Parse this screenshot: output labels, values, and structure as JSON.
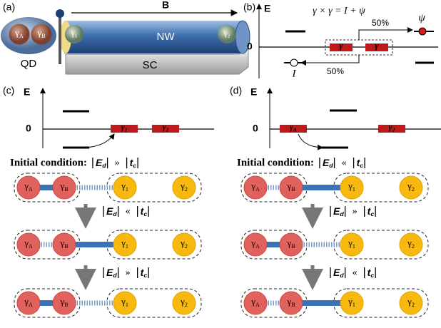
{
  "panel_a": {
    "label": "(a)",
    "qd": "QD",
    "nw": "NW",
    "sc": "SC",
    "field": "B",
    "qd_modes": [
      {
        "symbol": "γ",
        "sub": "A"
      },
      {
        "symbol": "γ",
        "sub": "B"
      }
    ],
    "nw_modes": [
      {
        "symbol": "γ",
        "sub": "1"
      },
      {
        "symbol": "γ",
        "sub": "2"
      }
    ]
  },
  "panel_b": {
    "label": "(b)",
    "axis": "E",
    "zero": "0",
    "equation": "γ × γ = I + ψ",
    "prob_up": "50%",
    "prob_down": "50%",
    "psi": "ψ",
    "identity": "I",
    "modes": [
      "γ",
      "γ"
    ]
  },
  "panel_c": {
    "label": "(c)",
    "axis": "E",
    "zero": "0",
    "levels": [
      {
        "symbol": "γ",
        "sub": "1"
      },
      {
        "symbol": "γ",
        "sub": "2"
      }
    ],
    "condition": {
      "prefix": "Initial condition:",
      "left": {
        "symbol": "E",
        "sub": "d"
      },
      "relation": "»",
      "right": {
        "symbol": "t",
        "sub": "c"
      }
    },
    "steps": [
      {
        "left": {
          "symbol": "E",
          "sub": "d"
        },
        "relation": "«",
        "right": {
          "symbol": "t",
          "sub": "c"
        }
      },
      {
        "left": {
          "symbol": "E",
          "sub": "d"
        },
        "relation": "»",
        "right": {
          "symbol": "t",
          "sub": "c"
        }
      }
    ],
    "chains": [
      [
        {
          "symbol": "γ",
          "sub": "A"
        },
        {
          "symbol": "γ",
          "sub": "B"
        },
        {
          "symbol": "γ",
          "sub": "1"
        },
        {
          "symbol": "γ",
          "sub": "2"
        }
      ],
      [
        {
          "symbol": "γ",
          "sub": "A"
        },
        {
          "symbol": "γ",
          "sub": "B"
        },
        {
          "symbol": "γ",
          "sub": "1"
        },
        {
          "symbol": "γ",
          "sub": "2"
        }
      ],
      [
        {
          "symbol": "γ",
          "sub": "A"
        },
        {
          "symbol": "γ",
          "sub": "B"
        },
        {
          "symbol": "γ",
          "sub": "1"
        },
        {
          "symbol": "γ",
          "sub": "2"
        }
      ]
    ]
  },
  "panel_d": {
    "label": "(d)",
    "axis": "E",
    "zero": "0",
    "levels": [
      {
        "symbol": "γ",
        "sub": "A"
      },
      {
        "symbol": "γ",
        "sub": "2"
      }
    ],
    "condition": {
      "prefix": "Initial condition:",
      "left": {
        "symbol": "E",
        "sub": "d"
      },
      "relation": "«",
      "right": {
        "symbol": "t",
        "sub": "c"
      }
    },
    "steps": [
      {
        "left": {
          "symbol": "E",
          "sub": "d"
        },
        "relation": "»",
        "right": {
          "symbol": "t",
          "sub": "c"
        }
      },
      {
        "left": {
          "symbol": "E",
          "sub": "d"
        },
        "relation": "«",
        "right": {
          "symbol": "t",
          "sub": "c"
        }
      }
    ],
    "chains": [
      [
        {
          "symbol": "γ",
          "sub": "A"
        },
        {
          "symbol": "γ",
          "sub": "B"
        },
        {
          "symbol": "γ",
          "sub": "1"
        },
        {
          "symbol": "γ",
          "sub": "2"
        }
      ],
      [
        {
          "symbol": "γ",
          "sub": "A"
        },
        {
          "symbol": "γ",
          "sub": "B"
        },
        {
          "symbol": "γ",
          "sub": "1"
        },
        {
          "symbol": "γ",
          "sub": "2"
        }
      ],
      [
        {
          "symbol": "γ",
          "sub": "A"
        },
        {
          "symbol": "γ",
          "sub": "B"
        },
        {
          "symbol": "γ",
          "sub": "1"
        },
        {
          "symbol": "γ",
          "sub": "2"
        }
      ]
    ]
  }
}
